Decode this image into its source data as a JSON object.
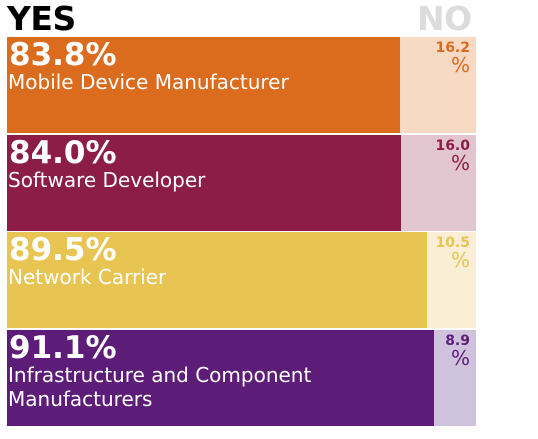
{
  "header": {
    "yes_label": "YES",
    "no_label": "NO"
  },
  "chart_data": {
    "type": "bar",
    "stacked": true,
    "orientation": "horizontal",
    "xlim": [
      0,
      100
    ],
    "categories": [
      "Mobile Device Manufacturer",
      "Software Developer",
      "Network Carrier",
      "Infrastructure and Component Manufacturers"
    ],
    "series": [
      {
        "name": "YES",
        "values": [
          83.8,
          84.0,
          89.5,
          91.1
        ]
      },
      {
        "name": "NO",
        "values": [
          16.2,
          16.0,
          10.5,
          8.9
        ]
      }
    ],
    "yes_labels": [
      "83.8%",
      "84.0%",
      "89.5%",
      "91.1%"
    ],
    "no_labels": [
      "16.2",
      "16.0",
      "10.5",
      "8.9"
    ],
    "percent_sign": "%",
    "colors": [
      {
        "yes": "#db6b1d",
        "no": "#f8d9c3",
        "yes_text": "#ffffff",
        "no_text": "#db6b1d"
      },
      {
        "yes": "#8c1d47",
        "no": "#e2c6cf",
        "yes_text": "#ffffff",
        "no_text": "#8c1d47"
      },
      {
        "yes": "#e8c552",
        "no": "#faefd6",
        "yes_text": "#ffffff",
        "no_text": "#e8c552"
      },
      {
        "yes": "#5d1c78",
        "no": "#cfc2dd",
        "yes_text": "#ffffff",
        "no_text": "#5d1c78"
      }
    ],
    "grid": false,
    "legend": "top"
  }
}
